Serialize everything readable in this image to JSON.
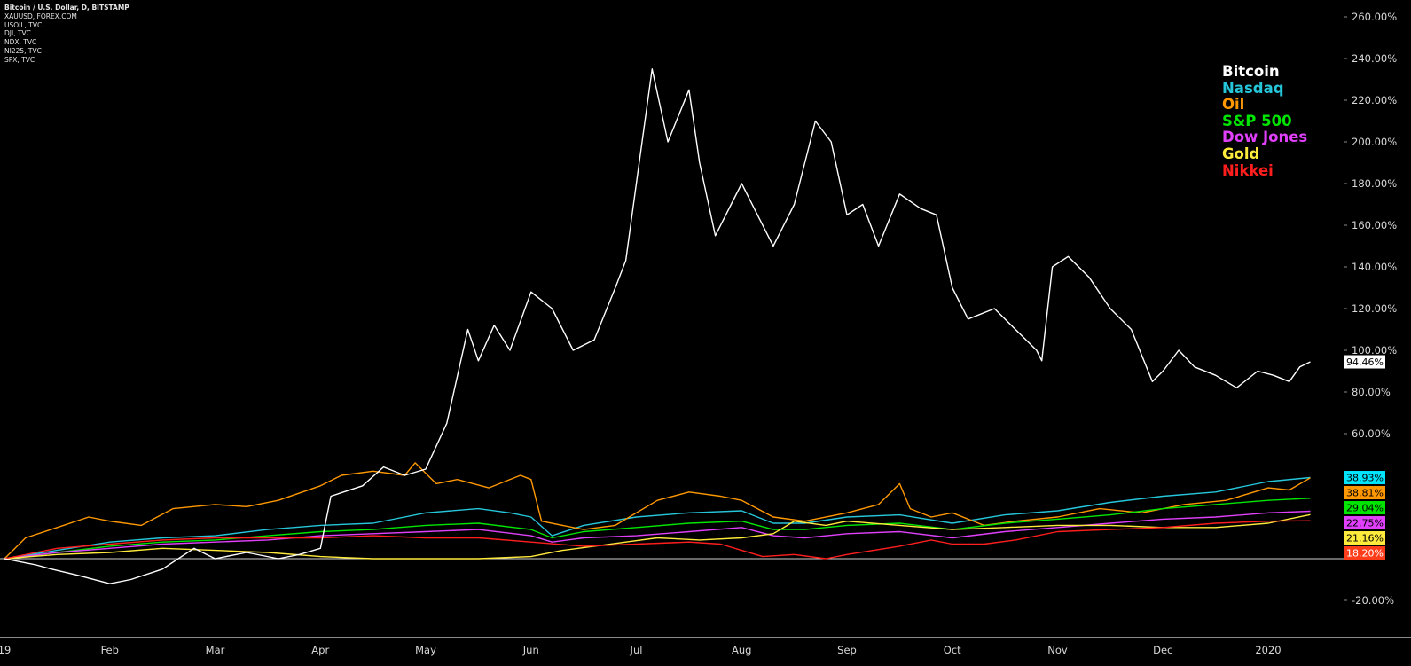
{
  "header": {
    "symbols": [
      "Bitcoin / U.S. Dollar, D, BITSTAMP",
      "XAUUSD, FOREX.COM",
      "USOIL, TVC",
      "DJI, TVC",
      "NDX, TVC",
      "NI225, TVC",
      "SPX, TVC"
    ]
  },
  "colors": {
    "background": "#000000",
    "axis_text": "#d9d9d9",
    "zero_line": "#d0d0d0"
  },
  "chart_data": {
    "type": "line",
    "y_unit": "%",
    "ylim": [
      -30,
      265
    ],
    "yticks": [
      "260.00%",
      "240.00%",
      "220.00%",
      "200.00%",
      "180.00%",
      "160.00%",
      "140.00%",
      "120.00%",
      "100.00%",
      "80.00%",
      "60.00%",
      "-20.00%"
    ],
    "ytick_values": [
      260,
      240,
      220,
      200,
      180,
      160,
      140,
      120,
      100,
      80,
      60,
      -20
    ],
    "xlim": [
      0,
      12.85
    ],
    "xticks": [
      "19",
      "Feb",
      "Mar",
      "Apr",
      "May",
      "Jun",
      "Jul",
      "Aug",
      "Sep",
      "Oct",
      "Nov",
      "Dec",
      "2020"
    ],
    "xtick_values": [
      0,
      1,
      2,
      3,
      4,
      5,
      6,
      7,
      8,
      9,
      10,
      11,
      12
    ],
    "legend": {
      "placement": "top-right",
      "entries": [
        {
          "label": "Bitcoin",
          "color": "#ffffff"
        },
        {
          "label": "Nasdaq",
          "color": "#26c6da"
        },
        {
          "label": "Oil",
          "color": "#ff9800"
        },
        {
          "label": "S&P 500",
          "color": "#00e600"
        },
        {
          "label": "Dow Jones",
          "color": "#e040fb"
        },
        {
          "label": "Gold",
          "color": "#ffeb3b"
        },
        {
          "label": "Nikkei",
          "color": "#ff1e1e"
        }
      ]
    },
    "series": [
      {
        "key": "bitcoin",
        "color": "#ffffff",
        "last_label": "94.46%",
        "last_value": 94.46,
        "label_bg": "#ffffff",
        "label_fg": "#000000",
        "x": [
          0,
          0.3,
          0.45,
          0.7,
          1.0,
          1.2,
          1.5,
          1.8,
          2.0,
          2.3,
          2.6,
          2.8,
          3.0,
          3.1,
          3.4,
          3.6,
          3.8,
          4.0,
          4.2,
          4.4,
          4.5,
          4.65,
          4.8,
          5.0,
          5.2,
          5.4,
          5.6,
          5.8,
          5.9,
          6.0,
          6.15,
          6.3,
          6.5,
          6.6,
          6.75,
          6.9,
          7.0,
          7.15,
          7.3,
          7.5,
          7.7,
          7.85,
          8.0,
          8.15,
          8.3,
          8.5,
          8.7,
          8.85,
          9.0,
          9.15,
          9.4,
          9.6,
          9.8,
          9.85,
          9.95,
          10.1,
          10.3,
          10.5,
          10.7,
          10.9,
          11.0,
          11.15,
          11.3,
          11.5,
          11.7,
          11.9,
          12.05,
          12.2,
          12.3,
          12.4
        ],
        "y": [
          0,
          -3,
          -5,
          -8,
          -12,
          -10,
          -5,
          5,
          0,
          3,
          0,
          2,
          5,
          30,
          35,
          44,
          40,
          43,
          65,
          110,
          95,
          112,
          100,
          128,
          120,
          100,
          105,
          130,
          143,
          180,
          235,
          200,
          225,
          190,
          155,
          170,
          180,
          165,
          150,
          170,
          210,
          200,
          165,
          170,
          150,
          175,
          168,
          165,
          130,
          115,
          120,
          110,
          100,
          95,
          140,
          145,
          135,
          120,
          110,
          85,
          90,
          100,
          92,
          88,
          82,
          90,
          88,
          85,
          92,
          94.46
        ]
      },
      {
        "key": "nasdaq",
        "color": "#26c6da",
        "last_label": "38.93%",
        "last_value": 38.93,
        "label_bg": "#00e5ff",
        "label_fg": "#000000",
        "x": [
          0,
          0.5,
          1.0,
          1.5,
          2.0,
          2.5,
          3.0,
          3.5,
          4.0,
          4.5,
          4.8,
          5.0,
          5.2,
          5.5,
          6.0,
          6.5,
          7.0,
          7.3,
          7.6,
          8.0,
          8.5,
          9.0,
          9.5,
          10.0,
          10.5,
          11.0,
          11.5,
          12.0,
          12.4
        ],
        "y": [
          0,
          4,
          8,
          10,
          11,
          14,
          16,
          17,
          22,
          24,
          22,
          20,
          11,
          16,
          20,
          22,
          23,
          17,
          17,
          20,
          21,
          17,
          21,
          23,
          27,
          30,
          32,
          37,
          38.93
        ]
      },
      {
        "key": "oil",
        "color": "#ff9800",
        "last_label": "38.81%",
        "last_value": 38.81,
        "label_bg": "#ff9800",
        "label_fg": "#000000",
        "x": [
          0,
          0.2,
          0.5,
          0.8,
          1.0,
          1.3,
          1.6,
          2.0,
          2.3,
          2.6,
          3.0,
          3.2,
          3.5,
          3.8,
          3.9,
          4.1,
          4.3,
          4.6,
          4.9,
          5.0,
          5.1,
          5.5,
          5.8,
          6.2,
          6.5,
          6.8,
          7.0,
          7.3,
          7.6,
          8.0,
          8.3,
          8.5,
          8.6,
          8.8,
          9.0,
          9.3,
          9.6,
          10.0,
          10.4,
          10.8,
          11.2,
          11.6,
          12.0,
          12.2,
          12.4
        ],
        "y": [
          0,
          10,
          15,
          20,
          18,
          16,
          24,
          26,
          25,
          28,
          35,
          40,
          42,
          40,
          46,
          36,
          38,
          34,
          40,
          38,
          18,
          14,
          16,
          28,
          32,
          30,
          28,
          20,
          18,
          22,
          26,
          36,
          24,
          20,
          22,
          16,
          18,
          20,
          24,
          22,
          26,
          28,
          34,
          33,
          38.81
        ]
      },
      {
        "key": "sp500",
        "color": "#00e600",
        "last_label": "29.04%",
        "last_value": 29.04,
        "label_bg": "#00e600",
        "label_fg": "#000000",
        "x": [
          0,
          0.5,
          1.0,
          1.5,
          2.0,
          2.5,
          3.0,
          3.5,
          4.0,
          4.5,
          5.0,
          5.2,
          5.5,
          6.0,
          6.5,
          7.0,
          7.3,
          7.6,
          8.0,
          8.5,
          9.0,
          9.5,
          10.0,
          10.5,
          11.0,
          11.5,
          12.0,
          12.4
        ],
        "y": [
          0,
          3,
          6,
          8,
          9,
          11,
          13,
          14,
          16,
          17,
          14,
          10,
          13,
          15,
          17,
          18,
          14,
          14,
          16,
          17,
          14,
          17,
          19,
          21,
          24,
          26,
          28,
          29.04
        ]
      },
      {
        "key": "dowjones",
        "color": "#e040fb",
        "last_label": "22.75%",
        "last_value": 22.75,
        "label_bg": "#e040fb",
        "label_fg": "#000000",
        "x": [
          0,
          0.5,
          1.0,
          1.5,
          2.0,
          2.5,
          3.0,
          3.5,
          4.0,
          4.5,
          5.0,
          5.2,
          5.5,
          6.0,
          6.5,
          7.0,
          7.3,
          7.6,
          8.0,
          8.5,
          9.0,
          9.5,
          10.0,
          10.5,
          11.0,
          11.5,
          12.0,
          12.4
        ],
        "y": [
          0,
          3,
          5,
          7,
          8,
          9,
          11,
          12,
          13,
          14,
          11,
          8,
          10,
          11,
          13,
          15,
          11,
          10,
          12,
          13,
          10,
          13,
          15,
          17,
          19,
          20,
          22,
          22.75
        ]
      },
      {
        "key": "gold",
        "color": "#ffeb3b",
        "last_label": "21.16%",
        "last_value": 21.16,
        "label_bg": "#ffeb3b",
        "label_fg": "#000000",
        "x": [
          0,
          0.5,
          1.0,
          1.5,
          2.0,
          2.5,
          3.0,
          3.5,
          4.0,
          4.5,
          5.0,
          5.3,
          5.6,
          5.9,
          6.2,
          6.6,
          7.0,
          7.3,
          7.5,
          7.8,
          8.0,
          8.5,
          9.0,
          9.5,
          10.0,
          10.5,
          11.0,
          11.5,
          12.0,
          12.4
        ],
        "y": [
          0,
          2,
          3,
          5,
          4,
          3,
          1,
          0,
          0,
          0,
          1,
          4,
          6,
          8,
          10,
          9,
          10,
          12,
          18,
          16,
          18,
          16,
          14,
          15,
          16,
          16,
          15,
          15,
          17,
          21.16
        ]
      },
      {
        "key": "nikkei",
        "color": "#ff1e1e",
        "last_label": "18.20%",
        "last_value": 18.2,
        "label_bg": "#ff3d1a",
        "label_fg": "#ffffff",
        "x": [
          0,
          0.5,
          1.0,
          1.5,
          2.0,
          2.5,
          3.0,
          3.5,
          4.0,
          4.5,
          5.0,
          5.5,
          6.0,
          6.5,
          6.8,
          7.0,
          7.2,
          7.5,
          7.8,
          8.0,
          8.5,
          8.8,
          9.0,
          9.3,
          9.6,
          10.0,
          10.5,
          11.0,
          11.5,
          12.0,
          12.4
        ],
        "y": [
          0,
          5,
          7,
          9,
          10,
          10,
          10,
          11,
          10,
          10,
          8,
          6,
          7,
          8,
          7,
          4,
          1,
          2,
          0,
          2,
          6,
          9,
          7,
          7,
          9,
          13,
          14,
          15,
          17,
          18,
          18.2
        ]
      }
    ]
  }
}
